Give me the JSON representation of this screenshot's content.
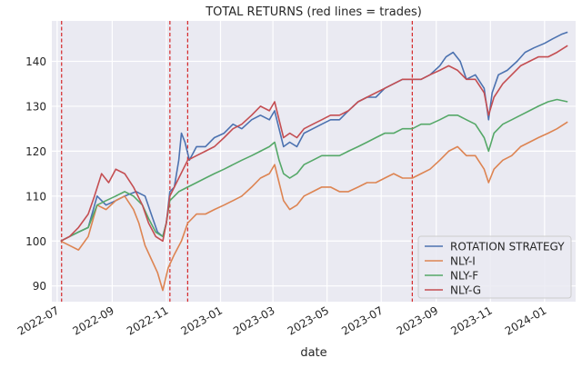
{
  "chart_data": {
    "type": "line",
    "title": "TOTAL RETURNS (red lines = trades)",
    "xlabel": "date",
    "ylabel": "",
    "x_range": [
      "2022-06-25",
      "2024-02-05"
    ],
    "ylim": [
      86.5,
      149
    ],
    "yticks": [
      90,
      100,
      110,
      120,
      130,
      140
    ],
    "xticks": [
      "2022-07-01",
      "2022-09-01",
      "2022-11-01",
      "2023-01-01",
      "2023-03-01",
      "2023-05-01",
      "2023-07-01",
      "2023-09-01",
      "2023-11-01",
      "2024-01-01"
    ],
    "xtick_labels": [
      "2022-07",
      "2022-09",
      "2022-11",
      "2023-01",
      "2023-03",
      "2023-05",
      "2023-07",
      "2023-09",
      "2023-11",
      "2024-01"
    ],
    "grid": true,
    "legend_position": "bottom-right",
    "trade_lines": [
      "2022-07-06",
      "2022-11-05",
      "2022-11-25",
      "2023-08-05"
    ],
    "trade_line_color": "#d62728",
    "series": [
      {
        "name": "ROTATION STRATEGY",
        "color": "#4c72b0",
        "points": [
          [
            "2022-07-05",
            100
          ],
          [
            "2022-07-15",
            101
          ],
          [
            "2022-07-25",
            102
          ],
          [
            "2022-08-05",
            103
          ],
          [
            "2022-08-15",
            110
          ],
          [
            "2022-08-25",
            108
          ],
          [
            "2022-09-05",
            109
          ],
          [
            "2022-09-15",
            110
          ],
          [
            "2022-09-28",
            111
          ],
          [
            "2022-10-08",
            110
          ],
          [
            "2022-10-15",
            106
          ],
          [
            "2022-10-22",
            102
          ],
          [
            "2022-10-28",
            101
          ],
          [
            "2022-11-01",
            104
          ],
          [
            "2022-11-05",
            111
          ],
          [
            "2022-11-10",
            112
          ],
          [
            "2022-11-15",
            118
          ],
          [
            "2022-11-18",
            124
          ],
          [
            "2022-11-22",
            122
          ],
          [
            "2022-11-27",
            118
          ],
          [
            "2022-12-05",
            121
          ],
          [
            "2022-12-15",
            121
          ],
          [
            "2022-12-25",
            123
          ],
          [
            "2023-01-05",
            124
          ],
          [
            "2023-01-15",
            126
          ],
          [
            "2023-01-25",
            125
          ],
          [
            "2023-02-05",
            127
          ],
          [
            "2023-02-15",
            128
          ],
          [
            "2023-02-25",
            127
          ],
          [
            "2023-03-03",
            129
          ],
          [
            "2023-03-08",
            125
          ],
          [
            "2023-03-13",
            121
          ],
          [
            "2023-03-20",
            122
          ],
          [
            "2023-03-28",
            121
          ],
          [
            "2023-04-05",
            124
          ],
          [
            "2023-04-15",
            125
          ],
          [
            "2023-04-25",
            126
          ],
          [
            "2023-05-05",
            127
          ],
          [
            "2023-05-15",
            127
          ],
          [
            "2023-05-25",
            129
          ],
          [
            "2023-06-05",
            131
          ],
          [
            "2023-06-15",
            132
          ],
          [
            "2023-06-25",
            132
          ],
          [
            "2023-07-05",
            134
          ],
          [
            "2023-07-15",
            135
          ],
          [
            "2023-07-25",
            136
          ],
          [
            "2023-08-05",
            136
          ],
          [
            "2023-08-15",
            136
          ],
          [
            "2023-08-25",
            137
          ],
          [
            "2023-09-05",
            139
          ],
          [
            "2023-09-12",
            141
          ],
          [
            "2023-09-20",
            142
          ],
          [
            "2023-09-28",
            140
          ],
          [
            "2023-10-05",
            136
          ],
          [
            "2023-10-15",
            137
          ],
          [
            "2023-10-25",
            134
          ],
          [
            "2023-10-30",
            127
          ],
          [
            "2023-11-03",
            133
          ],
          [
            "2023-11-10",
            137
          ],
          [
            "2023-11-20",
            138
          ],
          [
            "2023-12-01",
            140
          ],
          [
            "2023-12-10",
            142
          ],
          [
            "2023-12-20",
            143
          ],
          [
            "2024-01-01",
            144
          ],
          [
            "2024-01-10",
            145
          ],
          [
            "2024-01-20",
            146
          ],
          [
            "2024-01-27",
            146.5
          ]
        ]
      },
      {
        "name": "NLY-I",
        "color": "#dd8452",
        "points": [
          [
            "2022-07-05",
            100
          ],
          [
            "2022-07-15",
            99
          ],
          [
            "2022-07-25",
            98
          ],
          [
            "2022-08-05",
            101
          ],
          [
            "2022-08-15",
            108
          ],
          [
            "2022-08-25",
            107
          ],
          [
            "2022-09-05",
            109
          ],
          [
            "2022-09-15",
            110
          ],
          [
            "2022-09-25",
            107
          ],
          [
            "2022-10-01",
            104
          ],
          [
            "2022-10-08",
            99
          ],
          [
            "2022-10-15",
            96
          ],
          [
            "2022-10-22",
            93
          ],
          [
            "2022-10-28",
            89
          ],
          [
            "2022-11-03",
            94
          ],
          [
            "2022-11-10",
            97
          ],
          [
            "2022-11-18",
            100
          ],
          [
            "2022-11-25",
            104
          ],
          [
            "2022-12-05",
            106
          ],
          [
            "2022-12-15",
            106
          ],
          [
            "2022-12-25",
            107
          ],
          [
            "2023-01-05",
            108
          ],
          [
            "2023-01-15",
            109
          ],
          [
            "2023-01-25",
            110
          ],
          [
            "2023-02-05",
            112
          ],
          [
            "2023-02-15",
            114
          ],
          [
            "2023-02-25",
            115
          ],
          [
            "2023-03-03",
            117
          ],
          [
            "2023-03-08",
            113
          ],
          [
            "2023-03-13",
            109
          ],
          [
            "2023-03-20",
            107
          ],
          [
            "2023-03-28",
            108
          ],
          [
            "2023-04-05",
            110
          ],
          [
            "2023-04-15",
            111
          ],
          [
            "2023-04-25",
            112
          ],
          [
            "2023-05-05",
            112
          ],
          [
            "2023-05-15",
            111
          ],
          [
            "2023-05-25",
            111
          ],
          [
            "2023-06-05",
            112
          ],
          [
            "2023-06-15",
            113
          ],
          [
            "2023-06-25",
            113
          ],
          [
            "2023-07-05",
            114
          ],
          [
            "2023-07-15",
            115
          ],
          [
            "2023-07-25",
            114
          ],
          [
            "2023-08-05",
            114
          ],
          [
            "2023-08-15",
            115
          ],
          [
            "2023-08-25",
            116
          ],
          [
            "2023-09-05",
            118
          ],
          [
            "2023-09-15",
            120
          ],
          [
            "2023-09-25",
            121
          ],
          [
            "2023-10-05",
            119
          ],
          [
            "2023-10-15",
            119
          ],
          [
            "2023-10-25",
            116
          ],
          [
            "2023-10-30",
            113
          ],
          [
            "2023-11-05",
            116
          ],
          [
            "2023-11-15",
            118
          ],
          [
            "2023-11-25",
            119
          ],
          [
            "2023-12-05",
            121
          ],
          [
            "2023-12-15",
            122
          ],
          [
            "2023-12-25",
            123
          ],
          [
            "2024-01-05",
            124
          ],
          [
            "2024-01-15",
            125
          ],
          [
            "2024-01-27",
            126.5
          ]
        ]
      },
      {
        "name": "NLY-F",
        "color": "#55a868",
        "points": [
          [
            "2022-07-05",
            100
          ],
          [
            "2022-07-15",
            101
          ],
          [
            "2022-07-25",
            102
          ],
          [
            "2022-08-05",
            103
          ],
          [
            "2022-08-15",
            108
          ],
          [
            "2022-08-25",
            109
          ],
          [
            "2022-09-05",
            110
          ],
          [
            "2022-09-15",
            111
          ],
          [
            "2022-09-25",
            110
          ],
          [
            "2022-10-05",
            108
          ],
          [
            "2022-10-12",
            105
          ],
          [
            "2022-10-20",
            102
          ],
          [
            "2022-10-28",
            101
          ],
          [
            "2022-11-01",
            104
          ],
          [
            "2022-11-05",
            109
          ],
          [
            "2022-11-15",
            111
          ],
          [
            "2022-11-25",
            112
          ],
          [
            "2022-12-05",
            113
          ],
          [
            "2022-12-15",
            114
          ],
          [
            "2022-12-25",
            115
          ],
          [
            "2023-01-05",
            116
          ],
          [
            "2023-01-15",
            117
          ],
          [
            "2023-01-25",
            118
          ],
          [
            "2023-02-05",
            119
          ],
          [
            "2023-02-15",
            120
          ],
          [
            "2023-02-25",
            121
          ],
          [
            "2023-03-03",
            122
          ],
          [
            "2023-03-08",
            118
          ],
          [
            "2023-03-13",
            115
          ],
          [
            "2023-03-20",
            114
          ],
          [
            "2023-03-28",
            115
          ],
          [
            "2023-04-05",
            117
          ],
          [
            "2023-04-15",
            118
          ],
          [
            "2023-04-25",
            119
          ],
          [
            "2023-05-05",
            119
          ],
          [
            "2023-05-15",
            119
          ],
          [
            "2023-05-25",
            120
          ],
          [
            "2023-06-05",
            121
          ],
          [
            "2023-06-15",
            122
          ],
          [
            "2023-06-25",
            123
          ],
          [
            "2023-07-05",
            124
          ],
          [
            "2023-07-15",
            124
          ],
          [
            "2023-07-25",
            125
          ],
          [
            "2023-08-05",
            125
          ],
          [
            "2023-08-15",
            126
          ],
          [
            "2023-08-25",
            126
          ],
          [
            "2023-09-05",
            127
          ],
          [
            "2023-09-15",
            128
          ],
          [
            "2023-09-25",
            128
          ],
          [
            "2023-10-05",
            127
          ],
          [
            "2023-10-15",
            126
          ],
          [
            "2023-10-25",
            123
          ],
          [
            "2023-10-30",
            120
          ],
          [
            "2023-11-05",
            124
          ],
          [
            "2023-11-15",
            126
          ],
          [
            "2023-11-25",
            127
          ],
          [
            "2023-12-05",
            128
          ],
          [
            "2023-12-15",
            129
          ],
          [
            "2023-12-25",
            130
          ],
          [
            "2024-01-05",
            131
          ],
          [
            "2024-01-15",
            131.5
          ],
          [
            "2024-01-27",
            131
          ]
        ]
      },
      {
        "name": "NLY-G",
        "color": "#c44e52",
        "points": [
          [
            "2022-07-05",
            100
          ],
          [
            "2022-07-15",
            101
          ],
          [
            "2022-07-25",
            103
          ],
          [
            "2022-08-05",
            106
          ],
          [
            "2022-08-12",
            110
          ],
          [
            "2022-08-20",
            115
          ],
          [
            "2022-08-28",
            113
          ],
          [
            "2022-09-05",
            116
          ],
          [
            "2022-09-15",
            115
          ],
          [
            "2022-09-25",
            112
          ],
          [
            "2022-10-05",
            108
          ],
          [
            "2022-10-12",
            104
          ],
          [
            "2022-10-20",
            101
          ],
          [
            "2022-10-28",
            100
          ],
          [
            "2022-11-01",
            104
          ],
          [
            "2022-11-05",
            110
          ],
          [
            "2022-11-15",
            114
          ],
          [
            "2022-11-25",
            118
          ],
          [
            "2022-12-05",
            119
          ],
          [
            "2022-12-15",
            120
          ],
          [
            "2022-12-25",
            121
          ],
          [
            "2023-01-05",
            123
          ],
          [
            "2023-01-15",
            125
          ],
          [
            "2023-01-25",
            126
          ],
          [
            "2023-02-05",
            128
          ],
          [
            "2023-02-15",
            130
          ],
          [
            "2023-02-25",
            129
          ],
          [
            "2023-03-03",
            131
          ],
          [
            "2023-03-08",
            127
          ],
          [
            "2023-03-13",
            123
          ],
          [
            "2023-03-20",
            124
          ],
          [
            "2023-03-28",
            123
          ],
          [
            "2023-04-05",
            125
          ],
          [
            "2023-04-15",
            126
          ],
          [
            "2023-04-25",
            127
          ],
          [
            "2023-05-05",
            128
          ],
          [
            "2023-05-15",
            128
          ],
          [
            "2023-05-25",
            129
          ],
          [
            "2023-06-05",
            131
          ],
          [
            "2023-06-15",
            132
          ],
          [
            "2023-06-25",
            133
          ],
          [
            "2023-07-05",
            134
          ],
          [
            "2023-07-15",
            135
          ],
          [
            "2023-07-25",
            136
          ],
          [
            "2023-08-05",
            136
          ],
          [
            "2023-08-15",
            136
          ],
          [
            "2023-08-25",
            137
          ],
          [
            "2023-09-05",
            138
          ],
          [
            "2023-09-15",
            139
          ],
          [
            "2023-09-25",
            138
          ],
          [
            "2023-10-05",
            136
          ],
          [
            "2023-10-15",
            136
          ],
          [
            "2023-10-25",
            133
          ],
          [
            "2023-10-30",
            128
          ],
          [
            "2023-11-05",
            132
          ],
          [
            "2023-11-15",
            135
          ],
          [
            "2023-11-25",
            137
          ],
          [
            "2023-12-05",
            139
          ],
          [
            "2023-12-15",
            140
          ],
          [
            "2023-12-25",
            141
          ],
          [
            "2024-01-05",
            141
          ],
          [
            "2024-01-15",
            142
          ],
          [
            "2024-01-27",
            143.5
          ]
        ]
      }
    ]
  }
}
